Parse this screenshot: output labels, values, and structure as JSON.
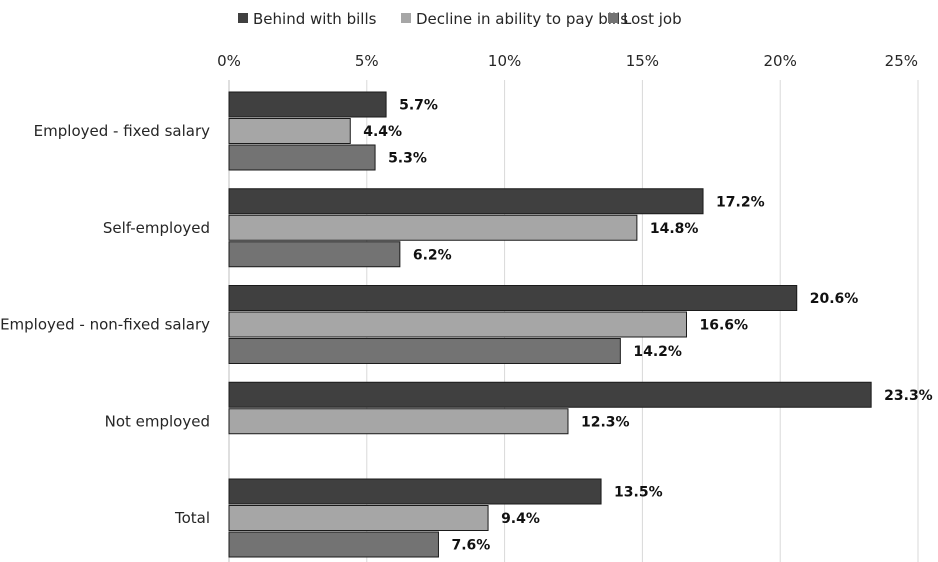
{
  "chart_data": {
    "type": "bar",
    "orientation": "horizontal",
    "categories": [
      "Employed - fixed salary",
      "Self-employed",
      "Employed - non-fixed salary",
      "Not employed",
      "Total"
    ],
    "series": [
      {
        "name": "Behind with bills",
        "color": "#404040",
        "values": [
          5.7,
          17.2,
          20.6,
          23.3,
          13.5
        ],
        "labels": [
          "5.7%",
          "17.2%",
          "20.6%",
          "23.3%",
          "13.5%"
        ]
      },
      {
        "name": "Decline in ability to pay bills",
        "color": "#a6a6a6",
        "values": [
          4.4,
          14.8,
          16.6,
          12.3,
          9.4
        ],
        "labels": [
          "4.4%",
          "14.8%",
          "16.6%",
          "12.3%",
          "9.4%"
        ]
      },
      {
        "name": "Lost job",
        "color": "#737373",
        "values": [
          5.3,
          6.2,
          14.2,
          null,
          7.6
        ],
        "labels": [
          "5.3%",
          "6.2%",
          "14.2%",
          "",
          "7.6%"
        ]
      }
    ],
    "xlim": [
      0,
      25
    ],
    "xticks": [
      0,
      5,
      10,
      15,
      20,
      25
    ],
    "xtick_labels": [
      "0%",
      "5%",
      "10%",
      "15%",
      "20%",
      "25%"
    ],
    "title": "",
    "xlabel": "",
    "ylabel": "",
    "grid": true,
    "legend_position": "top",
    "axis_position": "top"
  }
}
